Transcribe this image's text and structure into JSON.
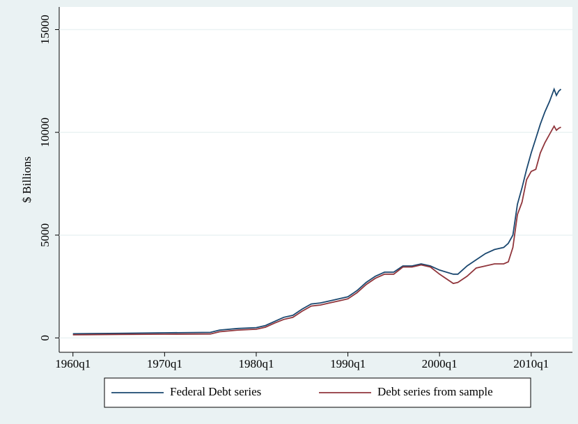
{
  "chart_data": {
    "type": "line",
    "y_label": "$ Billions",
    "x": [
      "1960q1",
      "1965q1",
      "1970q1",
      "1975q1",
      "1976q1",
      "1978q1",
      "1980q1",
      "1981q1",
      "1982q1",
      "1983q1",
      "1984q1",
      "1985q1",
      "1986q1",
      "1987q1",
      "1988q1",
      "1989q1",
      "1990q1",
      "1991q1",
      "1992q1",
      "1993q1",
      "1994q1",
      "1995q1",
      "1996q1",
      "1997q1",
      "1998q1",
      "1999q1",
      "2000q1",
      "2001q3",
      "2002q1",
      "2003q1",
      "2004q1",
      "2005q1",
      "2006q1",
      "2007q1",
      "2007q3",
      "2008q1",
      "2008q3",
      "2009q1",
      "2009q3",
      "2010q1",
      "2010q3",
      "2011q1",
      "2011q3",
      "2012q1",
      "2012q3",
      "2012q4",
      "2013q1",
      "2013q2"
    ],
    "series": [
      {
        "name": "Federal Debt series",
        "color": "#1a476f",
        "values": [
          200,
          220,
          250,
          270,
          380,
          460,
          500,
          600,
          800,
          1000,
          1100,
          1400,
          1650,
          1700,
          1800,
          1900,
          2000,
          2300,
          2700,
          3000,
          3200,
          3200,
          3500,
          3500,
          3600,
          3500,
          3300,
          3100,
          3100,
          3500,
          3800,
          4100,
          4300,
          4400,
          4600,
          5000,
          6500,
          7300,
          8200,
          9000,
          9700,
          10400,
          11000,
          11500,
          12100,
          11800,
          12000,
          12100
        ]
      },
      {
        "name": "Debt series from sample",
        "color": "#90353b",
        "values": [
          150,
          170,
          180,
          190,
          300,
          380,
          420,
          520,
          720,
          900,
          1000,
          1300,
          1550,
          1600,
          1700,
          1800,
          1900,
          2200,
          2600,
          2900,
          3100,
          3100,
          3450,
          3450,
          3550,
          3450,
          3100,
          2650,
          2700,
          3000,
          3400,
          3500,
          3600,
          3600,
          3700,
          4400,
          6000,
          6600,
          7700,
          8100,
          8200,
          9000,
          9500,
          9900,
          10300,
          10100,
          10200,
          10250
        ]
      }
    ],
    "xlim": [
      "1958q3",
      "2014q3"
    ],
    "xticks": [
      "1960q1",
      "1970q1",
      "1980q1",
      "1990q1",
      "2000q1",
      "2010q1"
    ],
    "ylim": [
      -700,
      16100
    ],
    "yticks": [
      0,
      5000,
      10000,
      15000
    ],
    "grid": true,
    "legend": "bottom"
  }
}
